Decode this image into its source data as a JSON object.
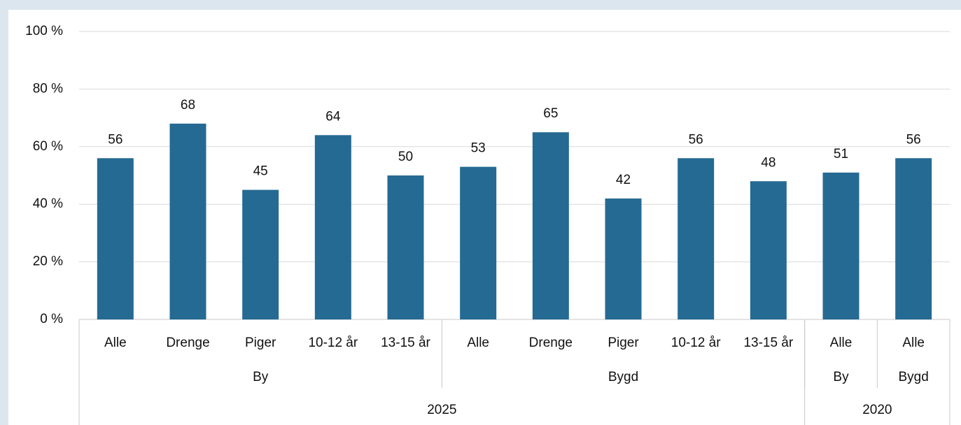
{
  "chart_data": {
    "type": "bar",
    "categories": [
      "Alle",
      "Drenge",
      "Piger",
      "10-12 år",
      "13-15 år",
      "Alle",
      "Drenge",
      "Piger",
      "10-12 år",
      "13-15 år",
      "Alle",
      "Alle"
    ],
    "values": [
      56,
      68,
      45,
      64,
      50,
      53,
      65,
      42,
      56,
      48,
      51,
      56
    ],
    "groups": [
      {
        "label": "By",
        "size": 5
      },
      {
        "label": "Bygd",
        "size": 5
      },
      {
        "label": "By",
        "size": 1
      },
      {
        "label": "Bygd",
        "size": 1
      }
    ],
    "supergroups": [
      {
        "label": "2025",
        "size": 10
      },
      {
        "label": "2020",
        "size": 2
      }
    ],
    "color": "#256a93",
    "ylim": [
      0,
      100
    ],
    "yticks": [
      {
        "value": 0,
        "label": "0 %"
      },
      {
        "value": 20,
        "label": "20 %"
      },
      {
        "value": 40,
        "label": "40 %"
      },
      {
        "value": 60,
        "label": "60 %"
      },
      {
        "value": 80,
        "label": "80 %"
      },
      {
        "value": 100,
        "label": "100 %"
      }
    ],
    "grid": true
  }
}
